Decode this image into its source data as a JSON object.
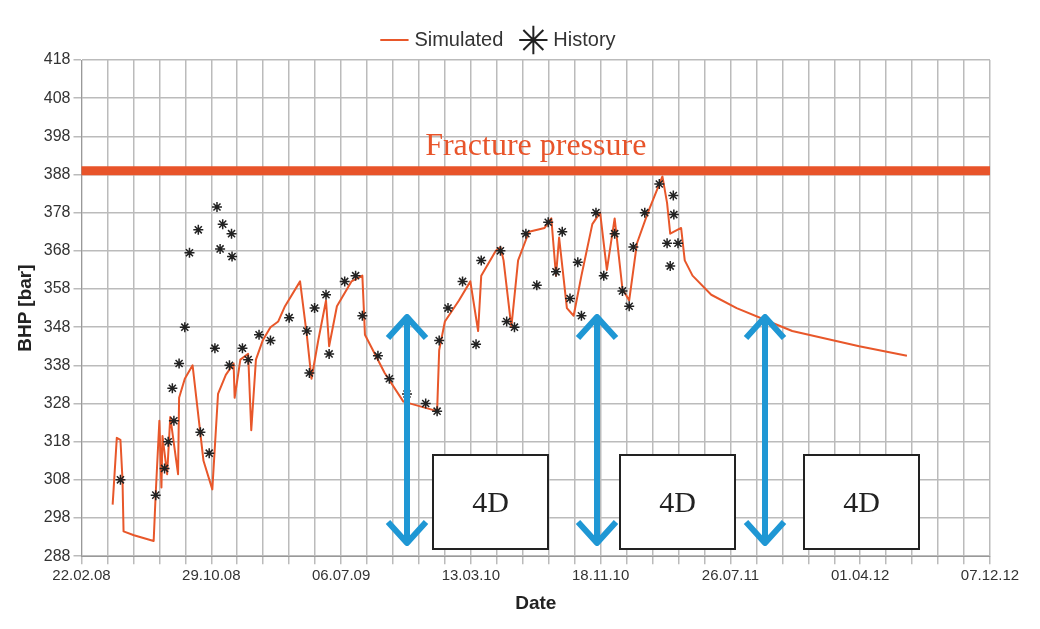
{
  "chart_data": {
    "type": "line",
    "xlabel": "Date",
    "ylabel": "BHP [bar]",
    "xlim": [
      "2008-02-22",
      "2012-12-07"
    ],
    "xticks": [
      {
        "value": "2008-02-22",
        "label": "22.02.08"
      },
      {
        "value": "2008-04-12",
        "label": null
      },
      {
        "value": "2008-06-01",
        "label": null
      },
      {
        "value": "2008-07-21",
        "label": null
      },
      {
        "value": "2008-09-09",
        "label": null
      },
      {
        "value": "2008-10-29",
        "label": "29.10.08"
      },
      {
        "value": "2008-12-18",
        "label": null
      },
      {
        "value": "2009-02-06",
        "label": null
      },
      {
        "value": "2009-03-28",
        "label": null
      },
      {
        "value": "2009-05-17",
        "label": null
      },
      {
        "value": "2009-07-06",
        "label": "06.07.09"
      },
      {
        "value": "2009-08-25",
        "label": null
      },
      {
        "value": "2009-10-14",
        "label": null
      },
      {
        "value": "2009-12-03",
        "label": null
      },
      {
        "value": "2010-01-22",
        "label": null
      },
      {
        "value": "2010-03-13",
        "label": "13.03.10"
      },
      {
        "value": "2010-05-02",
        "label": null
      },
      {
        "value": "2010-06-21",
        "label": null
      },
      {
        "value": "2010-08-10",
        "label": null
      },
      {
        "value": "2010-09-29",
        "label": null
      },
      {
        "value": "2010-11-18",
        "label": "18.11.10"
      },
      {
        "value": "2011-01-07",
        "label": null
      },
      {
        "value": "2011-02-26",
        "label": null
      },
      {
        "value": "2011-04-17",
        "label": null
      },
      {
        "value": "2011-06-06",
        "label": null
      },
      {
        "value": "2011-07-26",
        "label": "26.07.11"
      },
      {
        "value": "2011-09-14",
        "label": null
      },
      {
        "value": "2011-11-03",
        "label": null
      },
      {
        "value": "2011-12-23",
        "label": null
      },
      {
        "value": "2012-02-11",
        "label": null
      },
      {
        "value": "2012-04-01",
        "label": "01.04.12"
      },
      {
        "value": "2012-05-21",
        "label": null
      },
      {
        "value": "2012-07-10",
        "label": null
      },
      {
        "value": "2012-08-29",
        "label": null
      },
      {
        "value": "2012-10-18",
        "label": null
      },
      {
        "value": "2012-12-07",
        "label": "07.12.12"
      }
    ],
    "ylim": [
      288,
      418
    ],
    "yticks": [
      288,
      298,
      308,
      318,
      328,
      338,
      348,
      358,
      368,
      378,
      388,
      398,
      408,
      418
    ],
    "grid": true,
    "legend": "top",
    "ref_lines": [
      {
        "axis": "y",
        "value": 389,
        "label": "Fracture pressure",
        "color": "#e8542a"
      }
    ],
    "annotations": [
      "4D",
      "4D",
      "4D"
    ],
    "series": [
      {
        "name": "Simulated",
        "color": "#e8572a",
        "marker": "none",
        "x": [
          "2008-04-22",
          "2008-04-30",
          "2008-05-07",
          "2008-05-11",
          "2008-05-13",
          "2008-06-02",
          "2008-07-10",
          "2008-07-14",
          "2008-07-21",
          "2008-07-25",
          "2008-07-27",
          "2008-08-05",
          "2008-08-11",
          "2008-08-26",
          "2008-08-28",
          "2008-09-08",
          "2008-09-23",
          "2008-10-14",
          "2008-10-31",
          "2008-11-11",
          "2008-11-26",
          "2008-12-11",
          "2008-12-13",
          "2008-12-24",
          "2009-01-08",
          "2009-01-14",
          "2009-01-23",
          "2009-02-05",
          "2009-02-20",
          "2009-03-07",
          "2009-03-20",
          "2009-04-18",
          "2009-05-01",
          "2009-05-10",
          "2009-05-23",
          "2009-06-07",
          "2009-06-13",
          "2009-06-28",
          "2009-07-26",
          "2009-08-16",
          "2009-08-21",
          "2009-09-28",
          "2009-11-03",
          "2010-01-07",
          "2010-01-11",
          "2010-01-22",
          "2010-02-18",
          "2010-03-12",
          "2010-03-27",
          "2010-04-02",
          "2010-04-30",
          "2010-05-09",
          "2010-05-15",
          "2010-05-30",
          "2010-06-12",
          "2010-07-03",
          "2010-08-02",
          "2010-08-15",
          "2010-08-24",
          "2010-08-30",
          "2010-09-14",
          "2010-09-27",
          "2010-10-12",
          "2010-11-02",
          "2010-11-17",
          "2010-11-30",
          "2010-12-15",
          "2010-12-30",
          "2011-01-12",
          "2011-01-27",
          "2011-02-17",
          "2011-03-17",
          "2011-03-26",
          "2011-04-01",
          "2011-04-22",
          "2011-04-29",
          "2011-05-14",
          "2011-06-19",
          "2011-08-07",
          "2011-11-22",
          "2012-03-30",
          "2012-06-30"
        ],
        "values": [
          301.5,
          319,
          318.5,
          308,
          294.5,
          293.5,
          292,
          304.5,
          323.5,
          306,
          319.5,
          309.5,
          324.5,
          309.5,
          329.5,
          334.5,
          338,
          313,
          305.5,
          330.5,
          335.5,
          338.5,
          329.5,
          339.5,
          341,
          321,
          339.5,
          344.5,
          348,
          349.5,
          353.5,
          360,
          346,
          334.5,
          344.5,
          355,
          343,
          353.5,
          360,
          361.5,
          346,
          336,
          328.5,
          326,
          342,
          349.5,
          355,
          360,
          347,
          361.5,
          368,
          369,
          365.5,
          348,
          365.5,
          373,
          374,
          376.5,
          361.5,
          371.5,
          353,
          351,
          361.5,
          375,
          378,
          363,
          376.5,
          358,
          355,
          370,
          378,
          387.5,
          380.5,
          372.5,
          374,
          365.5,
          361.5,
          356.5,
          353,
          347,
          343,
          340.5
        ]
      },
      {
        "name": "History",
        "type": "scatter",
        "color": "#222222",
        "marker": "cross",
        "x": [
          "2008-05-07",
          "2008-07-14",
          "2008-07-31",
          "2008-08-07",
          "2008-08-15",
          "2008-08-18",
          "2008-08-28",
          "2008-09-08",
          "2008-09-17",
          "2008-10-04",
          "2008-10-08",
          "2008-10-25",
          "2008-11-05",
          "2008-11-09",
          "2008-11-15",
          "2008-11-20",
          "2008-12-03",
          "2008-12-07",
          "2008-12-08",
          "2008-12-28",
          "2009-01-08",
          "2009-01-29",
          "2009-02-20",
          "2009-03-28",
          "2009-05-01",
          "2009-05-06",
          "2009-05-16",
          "2009-06-07",
          "2009-06-13",
          "2009-07-13",
          "2009-08-03",
          "2009-08-16",
          "2009-09-15",
          "2009-10-07",
          "2009-11-10",
          "2009-12-16",
          "2010-01-07",
          "2010-01-11",
          "2010-01-28",
          "2010-02-25",
          "2010-03-23",
          "2010-04-02",
          "2010-05-09",
          "2010-05-21",
          "2010-06-05",
          "2010-06-27",
          "2010-07-18",
          "2010-08-09",
          "2010-08-24",
          "2010-09-05",
          "2010-09-20",
          "2010-10-05",
          "2010-10-12",
          "2010-11-09",
          "2010-11-24",
          "2010-12-15",
          "2010-12-30",
          "2011-01-12",
          "2011-01-20",
          "2011-02-11",
          "2011-03-11",
          "2011-03-26",
          "2011-04-01",
          "2011-04-07",
          "2011-04-08",
          "2011-04-16"
        ],
        "values": [
          308,
          304,
          311,
          318,
          332,
          323.5,
          338.5,
          348,
          367.5,
          373.5,
          320.5,
          315,
          342.5,
          379.5,
          368.5,
          375,
          338,
          372.5,
          366.5,
          342.5,
          339.5,
          346,
          344.5,
          350.5,
          347,
          336,
          353,
          356.5,
          341,
          360,
          361.5,
          351,
          340.5,
          334.5,
          330.5,
          328,
          326,
          344.5,
          353,
          360,
          343.5,
          365.5,
          368,
          349.5,
          348,
          372.5,
          359,
          375.5,
          362.5,
          373,
          355.5,
          365,
          351,
          378,
          361.5,
          372.5,
          357.5,
          353.5,
          369,
          378,
          385.5,
          370,
          364,
          382.5,
          377.5,
          370
        ]
      }
    ]
  }
}
